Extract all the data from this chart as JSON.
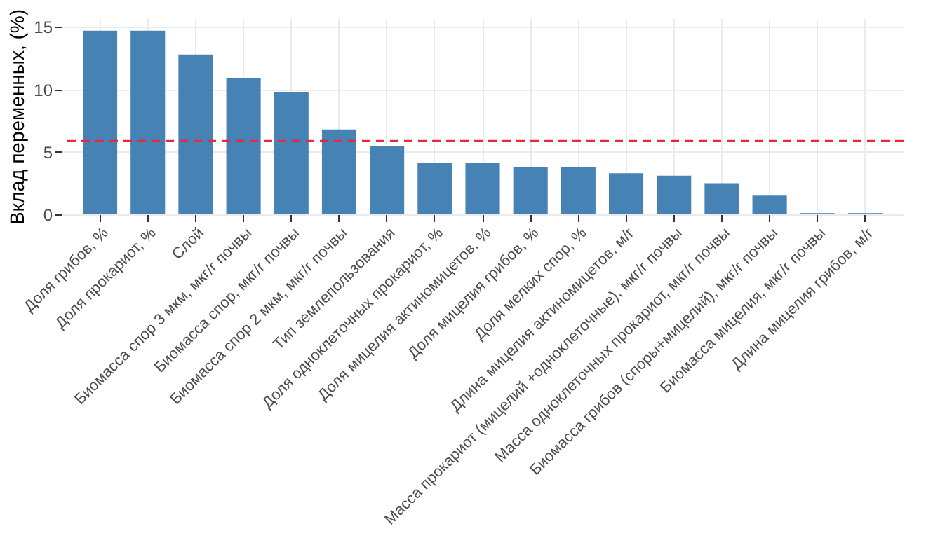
{
  "chart_data": {
    "type": "bar",
    "ylabel": "Вклад переменных, (%)",
    "categories": [
      "Доля грибов, %",
      "Доля прокариот, %",
      "Слой",
      "Биомасса спор 3 мкм, мкг/г почвы",
      "Биомасса спор, мкг/г почвы",
      "Биомасса спор 2 мкм, мкг/г почвы",
      "Тип землепользования",
      "Доля одноклеточных прокариот, %",
      "Доля мицелия актиномицетов, %",
      "Доля мицелия грибов, %",
      "Доля мелких спор, %",
      "Длина мицелия актиномицетов, м/г",
      "Масса прокариот (мицелий +одноклеточные), мкг/г почвы",
      "Масса одноклеточных прокариот, мкг/г почвы",
      "Биомасса грибов (споры+мицелий), мкг/г почвы",
      "Биомасса мицелия, мкг/г почвы",
      "Длина мицелия грибов, м/г"
    ],
    "values": [
      14.7,
      14.7,
      12.8,
      10.9,
      9.8,
      6.8,
      5.5,
      4.1,
      4.1,
      3.8,
      3.8,
      3.3,
      3.1,
      2.5,
      1.5,
      0.1,
      0.1
    ],
    "color": "#4682b4",
    "ylim": [
      0,
      15.7
    ],
    "yticks": [
      0,
      5,
      10,
      15
    ],
    "grid": true,
    "ref_lines": [
      {
        "axis": "y",
        "value": 5.88,
        "color": "#e8283c",
        "line_style": "dashed"
      }
    ]
  }
}
